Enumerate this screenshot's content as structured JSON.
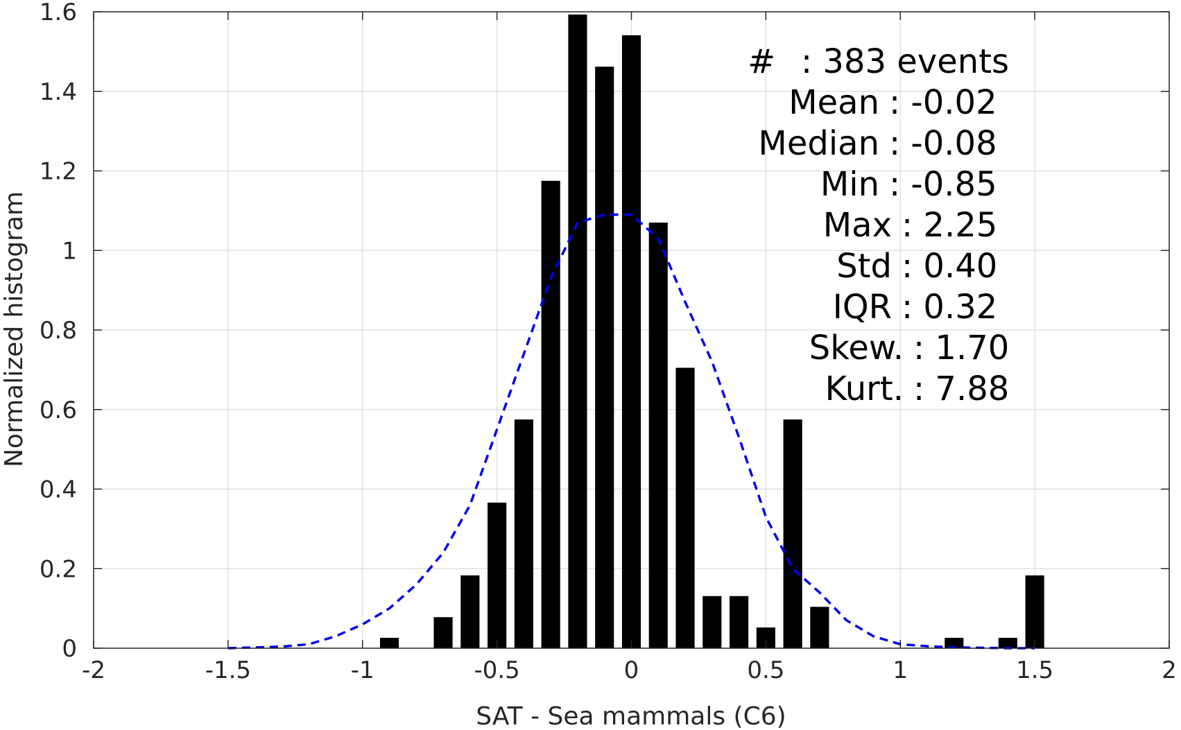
{
  "chart_data": {
    "type": "bar",
    "xlabel": "SAT - Sea mammals (C6)",
    "ylabel": "Normalized histogram",
    "xlim": [
      -2,
      2
    ],
    "ylim": [
      0,
      1.6
    ],
    "grid": true,
    "xticks": [
      {
        "value": -2,
        "label": "-2"
      },
      {
        "value": -1.5,
        "label": "-1.5"
      },
      {
        "value": -1,
        "label": "-1"
      },
      {
        "value": -0.5,
        "label": "-0.5"
      },
      {
        "value": 0,
        "label": "0"
      },
      {
        "value": 0.5,
        "label": "0.5"
      },
      {
        "value": 1,
        "label": "1"
      },
      {
        "value": 1.5,
        "label": "1.5"
      },
      {
        "value": 2,
        "label": "2"
      }
    ],
    "yticks": [
      {
        "value": 0,
        "label": "0"
      },
      {
        "value": 0.2,
        "label": "0.2"
      },
      {
        "value": 0.4,
        "label": "0.4"
      },
      {
        "value": 0.6,
        "label": "0.6"
      },
      {
        "value": 0.8,
        "label": "0.8"
      },
      {
        "value": 1,
        "label": "1"
      },
      {
        "value": 1.2,
        "label": "1.2"
      },
      {
        "value": 1.4,
        "label": "1.4"
      },
      {
        "value": 1.6,
        "label": "1.6"
      }
    ],
    "bar_color": "#000000",
    "bar_width": 0.07,
    "bars": [
      {
        "x": -0.9,
        "y": 0.026
      },
      {
        "x": -0.7,
        "y": 0.078
      },
      {
        "x": -0.6,
        "y": 0.183
      },
      {
        "x": -0.5,
        "y": 0.366
      },
      {
        "x": -0.4,
        "y": 0.575
      },
      {
        "x": -0.3,
        "y": 1.175
      },
      {
        "x": -0.2,
        "y": 1.593
      },
      {
        "x": -0.1,
        "y": 1.462
      },
      {
        "x": 0.0,
        "y": 1.541
      },
      {
        "x": 0.1,
        "y": 1.07
      },
      {
        "x": 0.2,
        "y": 0.705
      },
      {
        "x": 0.3,
        "y": 0.131
      },
      {
        "x": 0.4,
        "y": 0.131
      },
      {
        "x": 0.5,
        "y": 0.052
      },
      {
        "x": 0.6,
        "y": 0.575
      },
      {
        "x": 0.7,
        "y": 0.104
      },
      {
        "x": 1.2,
        "y": 0.026
      },
      {
        "x": 1.4,
        "y": 0.026
      },
      {
        "x": 1.5,
        "y": 0.183
      }
    ],
    "fit_curve": {
      "style": "dashed",
      "color": "#0000ee",
      "x": [
        -1.5,
        -1.4,
        -1.3,
        -1.2,
        -1.1,
        -1.0,
        -0.9,
        -0.8,
        -0.7,
        -0.6,
        -0.5,
        -0.4,
        -0.3,
        -0.2,
        -0.1,
        0.0,
        0.1,
        0.2,
        0.3,
        0.4,
        0.5,
        0.6,
        0.7,
        0.8,
        0.9,
        1.0,
        1.1,
        1.2,
        1.3,
        1.4,
        1.5
      ],
      "y": [
        0.0,
        0.002,
        0.004,
        0.01,
        0.03,
        0.06,
        0.1,
        0.16,
        0.24,
        0.36,
        0.55,
        0.74,
        0.93,
        1.07,
        1.09,
        1.09,
        1.03,
        0.87,
        0.72,
        0.53,
        0.33,
        0.2,
        0.14,
        0.07,
        0.03,
        0.01,
        0.005,
        0.002,
        0.001,
        0.0,
        0.0
      ]
    },
    "annotations": [
      {
        "key": "#",
        "value": ": 383 events"
      },
      {
        "key": "Mean",
        "value": ": -0.02"
      },
      {
        "key": "Median",
        "value": ": -0.08"
      },
      {
        "key": "Min",
        "value": ": -0.85"
      },
      {
        "key": "Max",
        "value": ": 2.25"
      },
      {
        "key": "Std",
        "value": ": 0.40"
      },
      {
        "key": "IQR",
        "value": ": 0.32"
      },
      {
        "key": "Skew.",
        "value": ": 1.70"
      },
      {
        "key": "Kurt.",
        "value": ": 7.88"
      }
    ]
  }
}
